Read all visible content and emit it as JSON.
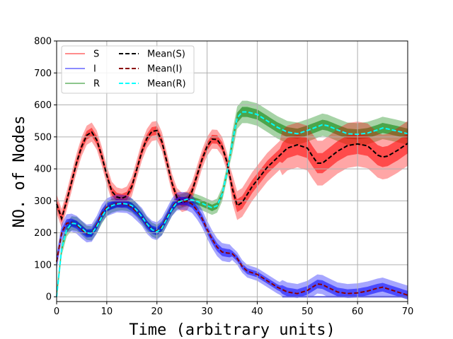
{
  "chart_data": {
    "type": "line",
    "title": "",
    "xlabel": "Time (arbitrary units)",
    "ylabel": "NO. of Nodes",
    "xlim": [
      0,
      70
    ],
    "ylim": [
      -15,
      800
    ],
    "xticks": [
      0,
      10,
      20,
      30,
      40,
      50,
      60,
      70
    ],
    "yticks": [
      0,
      100,
      200,
      300,
      400,
      500,
      600,
      700,
      800
    ],
    "grid": true,
    "legend_placement": "top-left",
    "legend": [
      "S",
      "I",
      "R",
      "Mean(S)",
      "Mean(I)",
      "Mean(R)"
    ],
    "colors": {
      "S": "#ff0000",
      "I": "#0000ff",
      "R": "#008000",
      "Mean(S)": "#000000",
      "Mean(I)": "#8b0000",
      "Mean(R)": "#00ffff"
    },
    "series": [
      {
        "name": "Mean(S)",
        "style": "dashed",
        "points": [
          [
            0,
            290
          ],
          [
            1,
            245
          ],
          [
            2,
            300
          ],
          [
            3,
            360
          ],
          [
            4,
            420
          ],
          [
            5,
            470
          ],
          [
            6,
            505
          ],
          [
            7,
            515
          ],
          [
            8,
            490
          ],
          [
            9,
            440
          ],
          [
            10,
            380
          ],
          [
            11,
            330
          ],
          [
            12,
            312
          ],
          [
            13,
            308
          ],
          [
            14,
            315
          ],
          [
            15,
            345
          ],
          [
            16,
            400
          ],
          [
            17,
            455
          ],
          [
            18,
            495
          ],
          [
            19,
            517
          ],
          [
            20,
            520
          ],
          [
            21,
            485
          ],
          [
            22,
            420
          ],
          [
            23,
            355
          ],
          [
            24,
            310
          ],
          [
            25,
            295
          ],
          [
            26,
            300
          ],
          [
            27,
            330
          ],
          [
            28,
            380
          ],
          [
            29,
            430
          ],
          [
            30,
            470
          ],
          [
            31,
            493
          ],
          [
            32,
            492
          ],
          [
            33,
            470
          ],
          [
            34,
            420
          ],
          [
            35,
            340
          ],
          [
            36,
            285
          ],
          [
            37,
            295
          ],
          [
            38,
            320
          ],
          [
            39,
            345
          ],
          [
            40,
            365
          ],
          [
            42,
            405
          ],
          [
            44,
            435
          ],
          [
            46,
            465
          ],
          [
            48,
            475
          ],
          [
            50,
            465
          ],
          [
            51,
            440
          ],
          [
            52,
            418
          ],
          [
            53,
            418
          ],
          [
            54,
            430
          ],
          [
            56,
            455
          ],
          [
            58,
            473
          ],
          [
            60,
            478
          ],
          [
            62,
            472
          ],
          [
            63,
            458
          ],
          [
            64,
            443
          ],
          [
            65,
            437
          ],
          [
            66,
            440
          ],
          [
            68,
            458
          ],
          [
            70,
            480
          ]
        ]
      },
      {
        "name": "Mean(I)",
        "style": "dashed",
        "points": [
          [
            0,
            110
          ],
          [
            1,
            200
          ],
          [
            2,
            230
          ],
          [
            3,
            232
          ],
          [
            4,
            225
          ],
          [
            5,
            210
          ],
          [
            6,
            198
          ],
          [
            7,
            200
          ],
          [
            8,
            225
          ],
          [
            9,
            260
          ],
          [
            10,
            280
          ],
          [
            12,
            292
          ],
          [
            14,
            290
          ],
          [
            15,
            280
          ],
          [
            17,
            250
          ],
          [
            18,
            225
          ],
          [
            19,
            210
          ],
          [
            20,
            205
          ],
          [
            21,
            220
          ],
          [
            22,
            250
          ],
          [
            23,
            280
          ],
          [
            24,
            298
          ],
          [
            25,
            300
          ],
          [
            26,
            298
          ],
          [
            27,
            290
          ],
          [
            28,
            270
          ],
          [
            29,
            245
          ],
          [
            30,
            210
          ],
          [
            31,
            180
          ],
          [
            32,
            155
          ],
          [
            33,
            140
          ],
          [
            34,
            137
          ],
          [
            35,
            135
          ],
          [
            36,
            120
          ],
          [
            37,
            95
          ],
          [
            38,
            80
          ],
          [
            40,
            70
          ],
          [
            42,
            50
          ],
          [
            44,
            30
          ],
          [
            46,
            15
          ],
          [
            48,
            10
          ],
          [
            50,
            20
          ],
          [
            51,
            30
          ],
          [
            52,
            40
          ],
          [
            53,
            38
          ],
          [
            54,
            30
          ],
          [
            56,
            15
          ],
          [
            58,
            10
          ],
          [
            60,
            12
          ],
          [
            62,
            18
          ],
          [
            64,
            27
          ],
          [
            65,
            30
          ],
          [
            66,
            25
          ],
          [
            68,
            15
          ],
          [
            70,
            5
          ]
        ]
      },
      {
        "name": "Mean(R)",
        "style": "dashed",
        "points": [
          [
            0,
            0
          ],
          [
            1,
            150
          ],
          [
            2,
            210
          ],
          [
            3,
            230
          ],
          [
            4,
            228
          ],
          [
            5,
            215
          ],
          [
            6,
            200
          ],
          [
            7,
            198
          ],
          [
            8,
            220
          ],
          [
            9,
            250
          ],
          [
            10,
            275
          ],
          [
            11,
            285
          ],
          [
            12,
            290
          ],
          [
            13,
            292
          ],
          [
            14,
            290
          ],
          [
            15,
            285
          ],
          [
            16,
            270
          ],
          [
            17,
            250
          ],
          [
            18,
            228
          ],
          [
            19,
            210
          ],
          [
            20,
            203
          ],
          [
            21,
            215
          ],
          [
            22,
            245
          ],
          [
            23,
            275
          ],
          [
            24,
            295
          ],
          [
            25,
            300
          ],
          [
            26,
            305
          ],
          [
            27,
            303
          ],
          [
            28,
            298
          ],
          [
            29,
            292
          ],
          [
            30,
            285
          ],
          [
            31,
            278
          ],
          [
            32,
            285
          ],
          [
            33,
            320
          ],
          [
            34,
            390
          ],
          [
            35,
            480
          ],
          [
            36,
            560
          ],
          [
            37,
            578
          ],
          [
            38,
            578
          ],
          [
            40,
            570
          ],
          [
            42,
            550
          ],
          [
            44,
            530
          ],
          [
            46,
            515
          ],
          [
            48,
            510
          ],
          [
            50,
            520
          ],
          [
            52,
            532
          ],
          [
            53,
            538
          ],
          [
            54,
            535
          ],
          [
            56,
            522
          ],
          [
            58,
            510
          ],
          [
            60,
            508
          ],
          [
            62,
            512
          ],
          [
            64,
            522
          ],
          [
            65,
            528
          ],
          [
            66,
            525
          ],
          [
            68,
            518
          ],
          [
            70,
            510
          ]
        ]
      }
    ]
  }
}
